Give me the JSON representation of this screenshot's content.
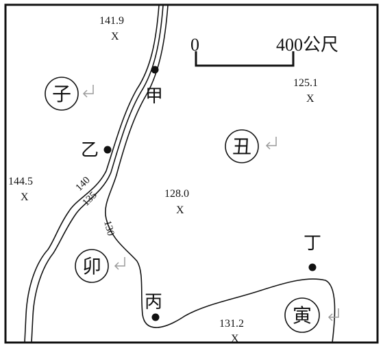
{
  "spot_heights": [
    {
      "value": "141.9",
      "mark": "X"
    },
    {
      "value": "125.1",
      "mark": "X"
    },
    {
      "value": "144.5",
      "mark": "X"
    },
    {
      "value": "128.0",
      "mark": "X"
    },
    {
      "value": "131.2",
      "mark": "X"
    }
  ],
  "contours": {
    "c140": "140",
    "c135": "135",
    "c130": "130"
  },
  "scale_bar": {
    "start": "0",
    "end": "400公尺"
  },
  "points": {
    "jia": "甲",
    "yi": "乙",
    "bing": "丙",
    "ding": "丁"
  },
  "circled_labels": {
    "zi": "子",
    "chou": "丑",
    "mao": "卯",
    "yin": "寅"
  },
  "colors": {
    "line": "#111111",
    "arrow": "#9a9a9a"
  }
}
